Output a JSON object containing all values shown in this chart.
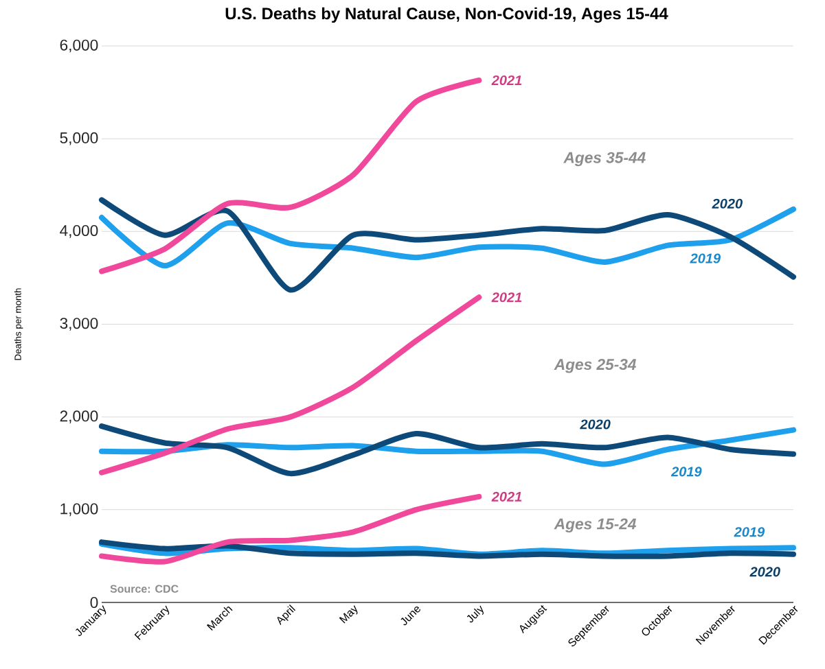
{
  "chart_data": {
    "type": "line",
    "title": "U.S. Deaths by Natural Cause, Non-Covid-19, Ages 15-44",
    "ylabel": "Deaths per month",
    "categories": [
      "January",
      "February",
      "March",
      "April",
      "May",
      "June",
      "July",
      "August",
      "September",
      "October",
      "November",
      "December"
    ],
    "series": [
      {
        "name": "2019",
        "color": "#1fa0ec",
        "values": [
          4150,
          3630,
          4090,
          3870,
          3820,
          3720,
          3830,
          3820,
          3670,
          3850,
          3910,
          4240
        ]
      },
      {
        "name": "2020",
        "color": "#0d4a7a",
        "values": [
          4340,
          3960,
          4220,
          3370,
          3960,
          3910,
          3960,
          4030,
          4010,
          4180,
          3940,
          3510
        ]
      },
      {
        "name": "2021",
        "color": "#f0489a",
        "values": [
          3570,
          3810,
          4300,
          4260,
          4610,
          5400,
          5630,
          null,
          null,
          null,
          null,
          null
        ]
      },
      {
        "name": "2019",
        "color": "#1fa0ec",
        "values": [
          1630,
          1630,
          1700,
          1670,
          1690,
          1630,
          1630,
          1630,
          1490,
          1650,
          1750,
          1860
        ]
      },
      {
        "name": "2020",
        "color": "#0d4a7a",
        "values": [
          1900,
          1720,
          1670,
          1390,
          1590,
          1820,
          1670,
          1710,
          1670,
          1780,
          1650,
          1600
        ]
      },
      {
        "name": "2021",
        "color": "#f0489a",
        "values": [
          1400,
          1610,
          1870,
          2000,
          2320,
          2820,
          3290,
          null,
          null,
          null,
          null,
          null
        ]
      },
      {
        "name": "2019",
        "color": "#1fa0ec",
        "values": [
          630,
          530,
          580,
          590,
          560,
          580,
          520,
          560,
          530,
          560,
          580,
          590
        ]
      },
      {
        "name": "2020",
        "color": "#0d4a7a",
        "values": [
          650,
          580,
          610,
          530,
          520,
          530,
          500,
          520,
          500,
          500,
          530,
          520
        ]
      },
      {
        "name": "2021",
        "color": "#f0489a",
        "values": [
          500,
          440,
          650,
          670,
          760,
          1000,
          1140,
          null,
          null,
          null,
          null,
          null
        ]
      }
    ],
    "ylim": [
      0,
      6000
    ],
    "yticks": [
      0,
      {
        "value": 1000,
        "label": "1,000"
      },
      {
        "value": 2000,
        "label": "2,000"
      },
      {
        "value": 3000,
        "label": "3,000"
      },
      {
        "value": 4000,
        "label": "4,000"
      },
      {
        "value": 5000,
        "label": "5,000"
      },
      {
        "value": 6000,
        "label": "6,000"
      }
    ],
    "grid": "y",
    "marker": "none",
    "line_style": "solid",
    "annotations": [
      "Ages 35-44",
      "Ages 25-34",
      "Ages 15-24",
      "Source: CDC"
    ]
  }
}
